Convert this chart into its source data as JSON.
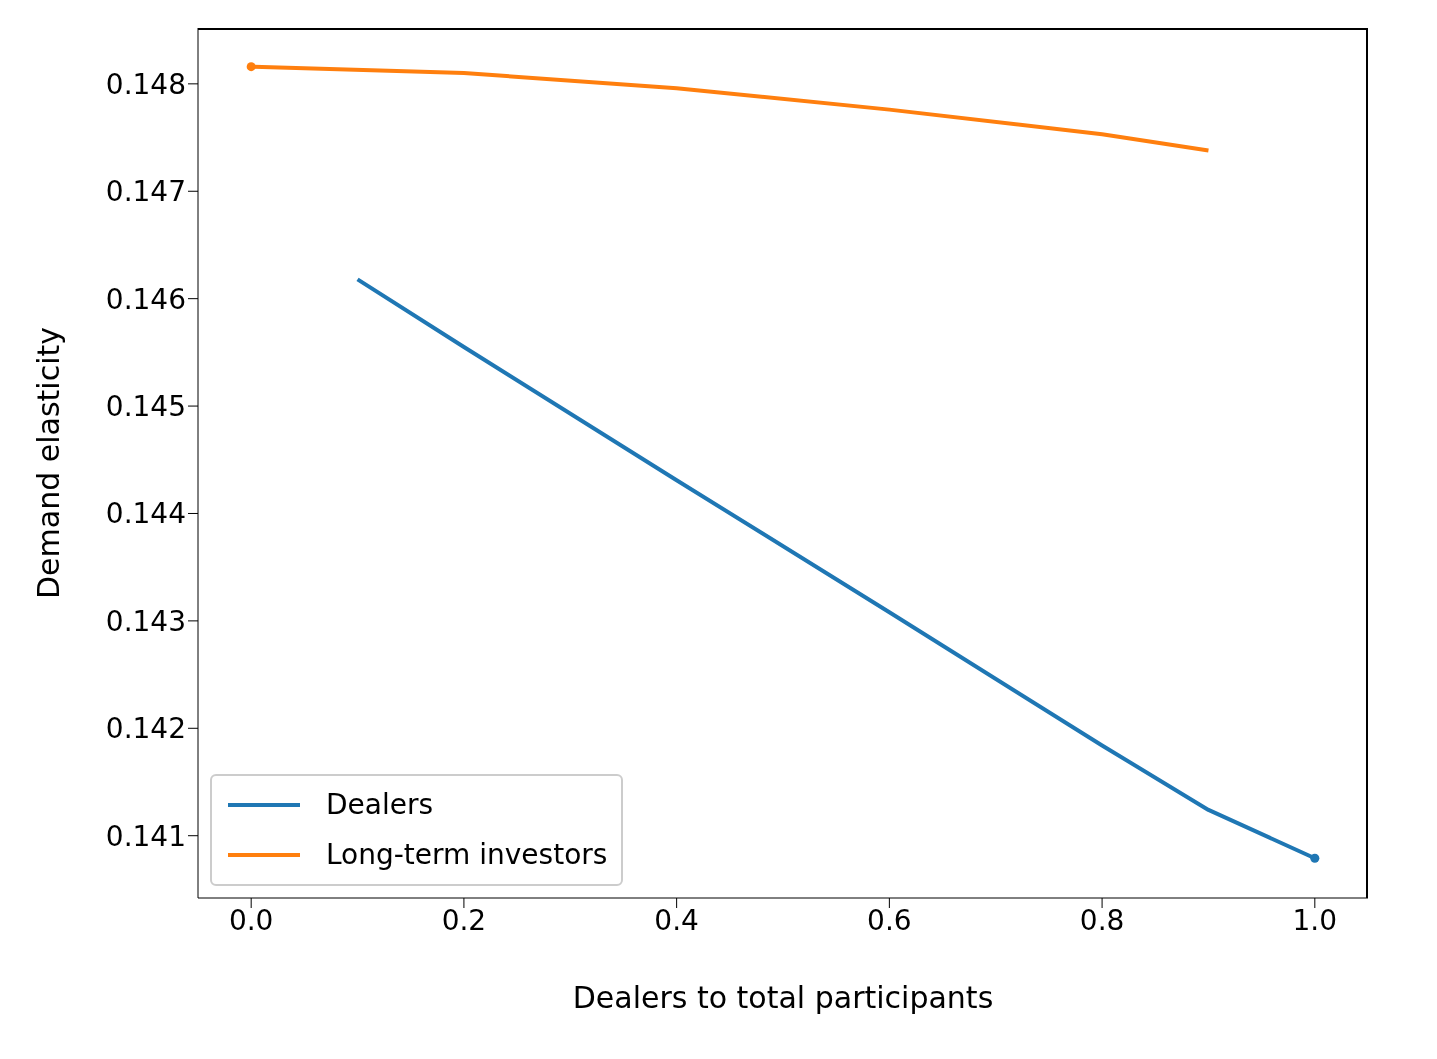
{
  "chart_data": {
    "type": "line",
    "xlabel": "Dealers to total participants",
    "ylabel": "Demand elasticity",
    "xlim": [
      -0.05,
      1.05
    ],
    "ylim": [
      0.14042,
      0.14852
    ],
    "xticks": [
      {
        "value": 0,
        "label": "0.0"
      },
      {
        "value": 0.2,
        "label": "0.2"
      },
      {
        "value": 0.4,
        "label": "0.4"
      },
      {
        "value": 0.6,
        "label": "0.6"
      },
      {
        "value": 0.8,
        "label": "0.8"
      },
      {
        "value": 1,
        "label": "1.0"
      }
    ],
    "yticks": [
      0.141,
      0.142,
      0.143,
      0.144,
      0.145,
      0.146,
      0.147,
      0.148
    ],
    "grid": false,
    "legend": "bottom left",
    "marker": "none",
    "line_style": "solid",
    "series": [
      {
        "name": "Dealers",
        "color": "#1f77b4",
        "x": [
          0.1,
          0.2,
          0.4,
          0.6,
          0.8,
          0.9,
          1.0
        ],
        "values": [
          0.14618,
          0.14555,
          0.14431,
          0.14308,
          0.14184,
          0.14124,
          0.14079
        ]
      },
      {
        "name": "Long-term investors",
        "color": "#ff7f0e",
        "x": [
          0,
          0.2,
          0.4,
          0.6,
          0.8,
          0.9
        ],
        "values": [
          0.14816,
          0.1481,
          0.14796,
          0.14776,
          0.14753,
          0.14738
        ]
      },
      {
        "type": "scatter",
        "marker": "circle",
        "color": "#ff7f0e",
        "x": [
          0
        ],
        "values": [
          0.14816
        ]
      },
      {
        "type": "scatter",
        "marker": "circle",
        "color": "#1f77b4",
        "x": [
          1.0
        ],
        "values": [
          0.14079
        ]
      }
    ]
  }
}
